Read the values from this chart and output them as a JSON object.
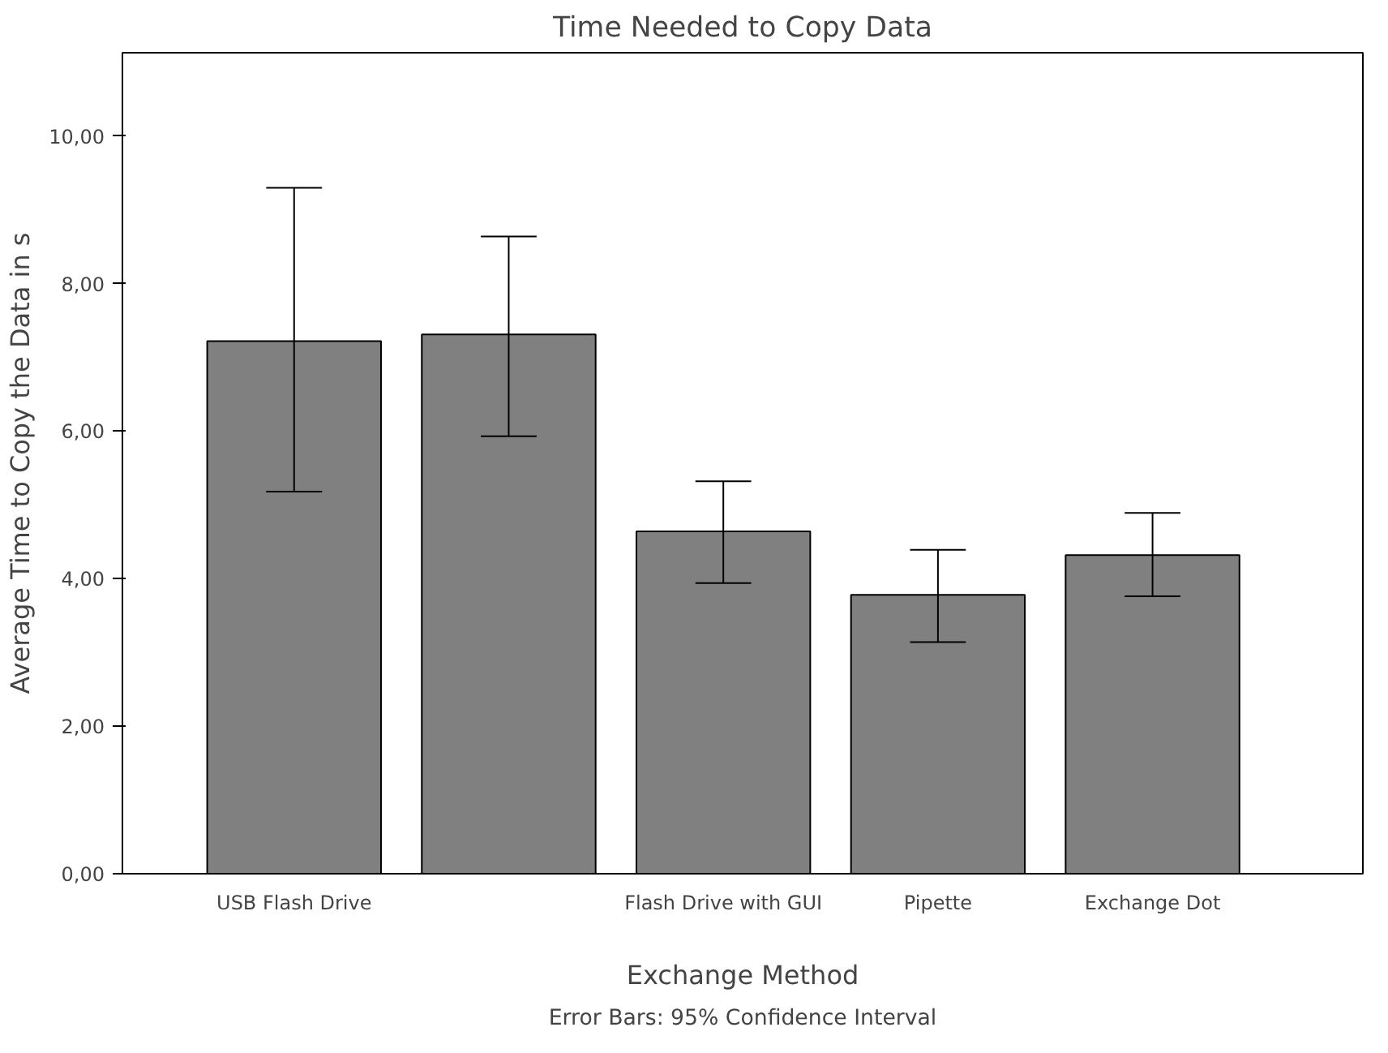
{
  "chart_data": {
    "type": "bar",
    "title": "Time Needed to Copy Data",
    "xlabel": "Exchange Method",
    "ylabel": "Average Time to Copy the Data in s",
    "categories": [
      "USB Flash Drive",
      null,
      "Flash Drive with GUI",
      "Pipette",
      "Exchange Dot"
    ],
    "values": [
      7.22,
      7.31,
      4.64,
      3.78,
      4.32
    ],
    "errors": [
      [
        5.18,
        9.3
      ],
      [
        5.93,
        8.64
      ],
      [
        3.94,
        5.32
      ],
      [
        3.14,
        4.39
      ],
      [
        3.76,
        4.89
      ]
    ],
    "color": "#808080",
    "ylim": [
      0,
      11.13
    ],
    "yticks": [
      {
        "value": 0,
        "label": "0,00"
      },
      {
        "value": 2,
        "label": "2,00"
      },
      {
        "value": 4,
        "label": "4,00"
      },
      {
        "value": 6,
        "label": "6,00"
      },
      {
        "value": 8,
        "label": "8,00"
      },
      {
        "value": 10,
        "label": "10,00"
      }
    ],
    "grid": false,
    "annotations": [
      "Error Bars: 95% Confidence Interval"
    ]
  }
}
